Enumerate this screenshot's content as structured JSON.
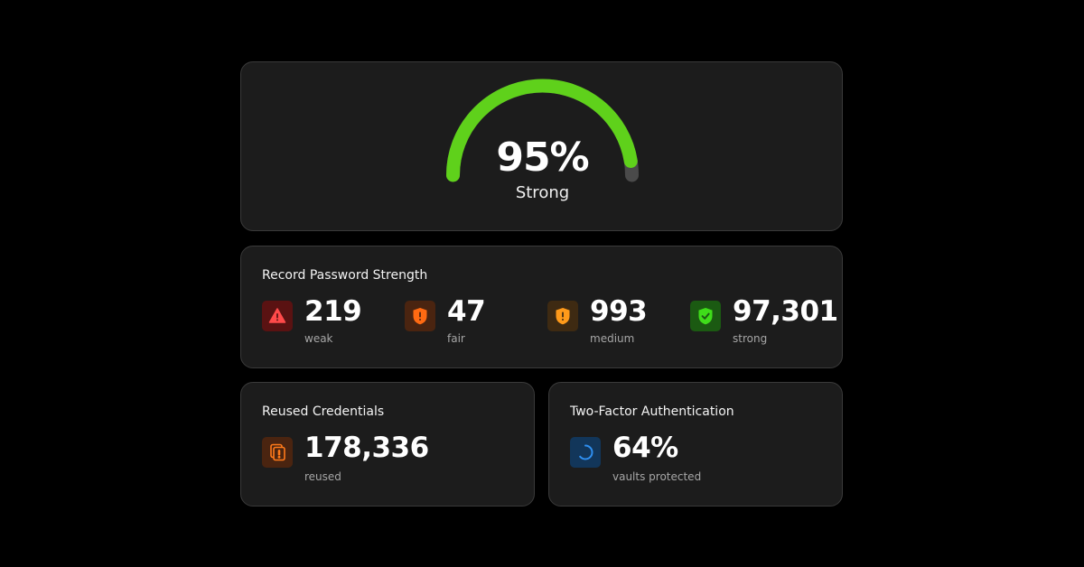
{
  "score": {
    "value": "95%",
    "label": "Strong",
    "fraction": 0.95,
    "colors": {
      "fill": "#5fd11b",
      "track": "#4a4a4a"
    }
  },
  "strength": {
    "title": "Record Password Strength",
    "items": [
      {
        "value": "219",
        "caption": "weak",
        "icon": "warning-triangle-icon",
        "tile_color": "#5a1212",
        "icon_color": "#ff4a4a"
      },
      {
        "value": "47",
        "caption": "fair",
        "icon": "shield-alert-icon",
        "tile_color": "#4a2410",
        "icon_color": "#ff6a12"
      },
      {
        "value": "993",
        "caption": "medium",
        "icon": "shield-alert-icon",
        "tile_color": "#3e2a12",
        "icon_color": "#ff9a1a"
      },
      {
        "value": "97,301",
        "caption": "strong",
        "icon": "shield-check-icon",
        "tile_color": "#1b5a12",
        "icon_color": "#3fdc1a"
      }
    ]
  },
  "reused": {
    "title": "Reused Credentials",
    "value": "178,336",
    "caption": "reused",
    "icon": "duplicate-alert-icon",
    "tile_color": "#4a2410",
    "icon_color": "#ff7a1a"
  },
  "twofa": {
    "title": "Two-Factor Authentication",
    "value": "64%",
    "caption": "vaults protected",
    "icon": "progress-ring-icon",
    "tile_color": "#12365a",
    "icon_color": "#2f8ff0"
  }
}
